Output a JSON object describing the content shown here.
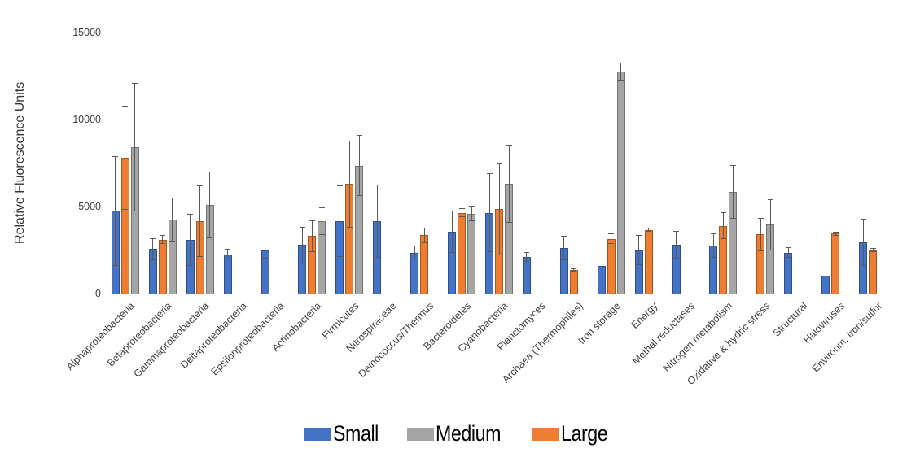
{
  "chart_data": {
    "type": "bar",
    "title": "",
    "xlabel": "",
    "ylabel": "Relative Fluorescence Units",
    "ylim": [
      0,
      15000
    ],
    "ytick_labels": [
      "15000",
      "10000",
      "5000",
      "0"
    ],
    "grid": true,
    "legend_position": "bottom-center",
    "error_bars": true,
    "categories": [
      "Alphaproteobacteria",
      "Betaproteobacteria",
      "Gammaproteobacteria",
      "Deltaproteobacteria",
      "Epsilonproteobacteria",
      "Actinobacteria",
      "Firmicutes",
      "Nitrospiraceae",
      "Deinococcus/Thermus",
      "Bacteroidetes",
      "Cyanobacteria",
      "Planctomyces",
      "Archaea (Thermophiles)",
      "Iron storage",
      "Energy",
      "Methal reductases",
      "Nitrogen metabolism",
      "Oxidative & hydric stress",
      "Structural",
      "Haloviruses",
      "Environm. Iron/sulfur"
    ],
    "bar_order_in_group": [
      "Small",
      "Large",
      "Medium"
    ],
    "series": [
      {
        "name": "Small",
        "color": "#4472C4",
        "values": [
          4750,
          2550,
          3100,
          2250,
          2500,
          2800,
          4150,
          4150,
          2350,
          3550,
          4650,
          2100,
          2600,
          1600,
          2500,
          2800,
          2750,
          null,
          2350,
          1050,
          2950
        ],
        "errors": [
          3150,
          650,
          1500,
          300,
          500,
          1050,
          2050,
          2100,
          400,
          1200,
          2250,
          280,
          700,
          null,
          850,
          800,
          700,
          null,
          300,
          null,
          1350
        ]
      },
      {
        "name": "Large",
        "color": "#ED7D31",
        "values": [
          7800,
          3100,
          4150,
          null,
          null,
          3300,
          6300,
          null,
          3350,
          4650,
          4850,
          null,
          1350,
          3150,
          3650,
          null,
          3900,
          3400,
          null,
          3450,
          2500
        ],
        "errors": [
          3000,
          250,
          2050,
          null,
          null,
          900,
          2500,
          null,
          450,
          250,
          2650,
          null,
          80,
          300,
          120,
          null,
          770,
          950,
          null,
          120,
          100
        ]
      },
      {
        "name": "Medium",
        "color": "#A5A5A5",
        "values": [
          8400,
          4250,
          5100,
          null,
          null,
          4150,
          7350,
          null,
          null,
          4600,
          6300,
          null,
          null,
          12750,
          null,
          null,
          5850,
          3950,
          null,
          null,
          null
        ],
        "errors": [
          3700,
          1250,
          1900,
          null,
          null,
          800,
          1750,
          null,
          null,
          450,
          2250,
          null,
          null,
          500,
          null,
          null,
          1550,
          1450,
          null,
          null,
          null
        ]
      }
    ]
  },
  "legend": {
    "items": [
      {
        "label": "Small",
        "color": "#4472C4"
      },
      {
        "label": "Medium",
        "color": "#A5A5A5"
      },
      {
        "label": "Large",
        "color": "#ED7D31"
      }
    ]
  },
  "colors": {
    "grid": "#D9D9D9",
    "axis": "#BFBFBF",
    "error_bar": "#595959",
    "tick_text": "#404040",
    "background": "#FFFFFF"
  }
}
